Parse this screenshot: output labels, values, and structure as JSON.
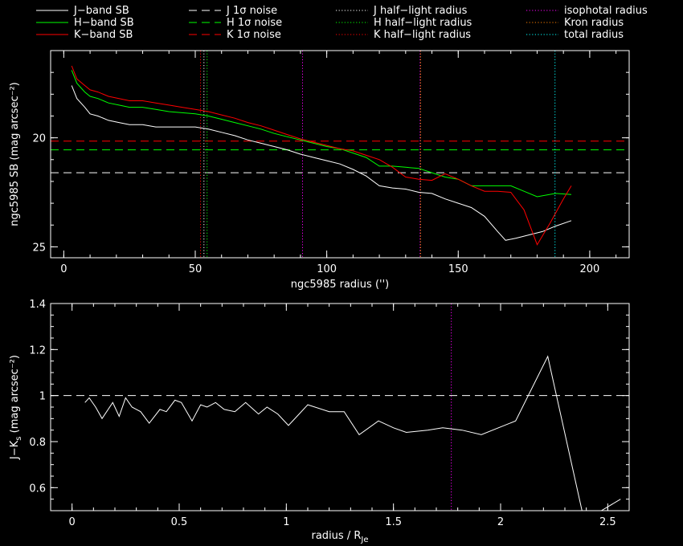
{
  "legend": [
    {
      "label": "J−band SB",
      "color": "#ffffff",
      "dash": "solid"
    },
    {
      "label": "H−band SB",
      "color": "#00ff00",
      "dash": "solid"
    },
    {
      "label": "K−band SB",
      "color": "#ff0000",
      "dash": "solid"
    },
    {
      "label": "J 1σ noise",
      "color": "#ffffff",
      "dash": "dashed"
    },
    {
      "label": "H 1σ noise",
      "color": "#00ff00",
      "dash": "dashed"
    },
    {
      "label": "K 1σ noise",
      "color": "#ff0000",
      "dash": "dashed"
    },
    {
      "label": "J half−light radius",
      "color": "#ffffff",
      "dash": "dotted"
    },
    {
      "label": "H half−light radius",
      "color": "#00ff00",
      "dash": "dotted"
    },
    {
      "label": "K half−light radius",
      "color": "#ff0000",
      "dash": "dotted"
    },
    {
      "label": "isophotal radius",
      "color": "#ff00ff",
      "dash": "dotted"
    },
    {
      "label": "Kron radius",
      "color": "#ff8000",
      "dash": "dotted"
    },
    {
      "label": "total radius",
      "color": "#00ffff",
      "dash": "dotted"
    }
  ],
  "chart_data": [
    {
      "type": "line",
      "xlabel": "ngc5985 radius ('')",
      "ylabel": "ngc5985 SB (mag arcsec⁻²)",
      "xlim": [
        -5,
        215
      ],
      "ylim": [
        25.5,
        16.0
      ],
      "y_inverted": true,
      "xticks": [
        0,
        50,
        100,
        150,
        200
      ],
      "yticks": [
        20,
        25
      ],
      "series": [
        {
          "name": "J−band SB",
          "color": "#ffffff",
          "x": [
            3,
            5,
            8,
            10,
            13,
            17,
            21,
            25,
            30,
            35,
            40,
            45,
            50,
            55,
            60,
            65,
            70,
            75,
            80,
            85,
            90,
            95,
            100,
            105,
            110,
            115,
            120,
            125,
            130,
            135,
            140,
            145,
            150,
            155,
            160,
            165,
            168,
            172,
            177,
            182,
            187,
            193
          ],
          "y": [
            17.6,
            18.2,
            18.6,
            18.9,
            19.0,
            19.2,
            19.3,
            19.4,
            19.4,
            19.5,
            19.5,
            19.5,
            19.5,
            19.6,
            19.75,
            19.9,
            20.1,
            20.25,
            20.4,
            20.55,
            20.75,
            20.9,
            21.05,
            21.2,
            21.45,
            21.75,
            22.2,
            22.3,
            22.35,
            22.5,
            22.55,
            22.8,
            23.0,
            23.2,
            23.6,
            24.3,
            24.7,
            24.6,
            24.45,
            24.3,
            24.05,
            23.8
          ]
        },
        {
          "name": "H−band SB",
          "color": "#00ff00",
          "x": [
            3,
            5,
            8,
            10,
            13,
            17,
            21,
            25,
            30,
            35,
            40,
            45,
            50,
            55,
            60,
            65,
            70,
            75,
            80,
            85,
            90,
            95,
            100,
            105,
            110,
            115,
            120,
            125,
            130,
            135,
            140,
            145,
            150,
            155,
            160,
            165,
            170,
            175,
            180,
            187,
            193
          ],
          "y": [
            16.9,
            17.5,
            17.9,
            18.1,
            18.2,
            18.4,
            18.5,
            18.6,
            18.6,
            18.7,
            18.8,
            18.85,
            18.9,
            19.0,
            19.15,
            19.3,
            19.45,
            19.6,
            19.8,
            19.95,
            20.1,
            20.25,
            20.4,
            20.5,
            20.7,
            20.9,
            21.3,
            21.3,
            21.35,
            21.4,
            21.6,
            21.8,
            21.9,
            22.2,
            22.2,
            22.2,
            22.2,
            22.45,
            22.7,
            22.55,
            22.6
          ]
        },
        {
          "name": "K−band SB",
          "color": "#ff0000",
          "x": [
            3,
            5,
            8,
            10,
            13,
            17,
            21,
            25,
            30,
            35,
            40,
            45,
            50,
            55,
            60,
            65,
            70,
            75,
            80,
            85,
            90,
            95,
            100,
            105,
            110,
            115,
            120,
            125,
            130,
            135,
            140,
            145,
            150,
            155,
            160,
            165,
            170,
            175,
            180,
            185,
            190,
            193
          ],
          "y": [
            16.7,
            17.3,
            17.6,
            17.8,
            17.9,
            18.1,
            18.2,
            18.3,
            18.3,
            18.4,
            18.5,
            18.6,
            18.7,
            18.8,
            18.95,
            19.1,
            19.3,
            19.45,
            19.65,
            19.85,
            20.05,
            20.2,
            20.35,
            20.5,
            20.6,
            20.8,
            21.0,
            21.35,
            21.8,
            21.9,
            21.95,
            21.65,
            21.9,
            22.2,
            22.45,
            22.45,
            22.5,
            23.3,
            24.9,
            23.9,
            22.8,
            22.2
          ]
        }
      ],
      "hlines": [
        {
          "y": 20.15,
          "color": "#ff0000",
          "dash": "dashed"
        },
        {
          "y": 20.55,
          "color": "#00ff00",
          "dash": "dashed"
        },
        {
          "y": 21.6,
          "color": "#ffffff",
          "dash": "dashed"
        }
      ],
      "vlines": [
        {
          "x": 53.3,
          "color": "#ffffff",
          "dash": "dotted"
        },
        {
          "x": 54.5,
          "color": "#00ff00",
          "dash": "dotted"
        },
        {
          "x": 52.0,
          "color": "#ff0000",
          "dash": "dotted"
        },
        {
          "x": 90.8,
          "color": "#ff00ff",
          "dash": "dotted"
        },
        {
          "x": 135.5,
          "color": "#ff00ff",
          "dash": "dotted"
        },
        {
          "x": 135.7,
          "color": "#ff8000",
          "dash": "dotted"
        },
        {
          "x": 186.8,
          "color": "#00ffff",
          "dash": "dotted"
        }
      ]
    },
    {
      "type": "line",
      "xlabel": "radius / R",
      "xlabel_sub": "Je",
      "ylabel": "J−K",
      "ylabel_sub": "s",
      "ylabel_rest": " (mag arcsec⁻²)",
      "xlim": [
        -0.1,
        2.6
      ],
      "ylim": [
        0.5,
        1.4
      ],
      "xticks": [
        0,
        0.5,
        1,
        1.5,
        2,
        2.5
      ],
      "ytick_labels": [
        "0.6",
        "0.8",
        "1",
        "1.2",
        "1.4"
      ],
      "yticks": [
        0.6,
        0.8,
        1.0,
        1.2,
        1.4
      ],
      "series": [
        {
          "name": "J−K",
          "color": "#ffffff",
          "x": [
            0.06,
            0.08,
            0.11,
            0.14,
            0.19,
            0.22,
            0.25,
            0.28,
            0.32,
            0.36,
            0.41,
            0.44,
            0.48,
            0.51,
            0.56,
            0.6,
            0.63,
            0.67,
            0.71,
            0.76,
            0.81,
            0.87,
            0.91,
            0.96,
            1.01,
            1.06,
            1.1,
            1.2,
            1.27,
            1.34,
            1.43,
            1.5,
            1.56,
            1.66,
            1.73,
            1.82,
            1.91,
            2.07,
            2.22,
            2.38,
            2.47,
            2.56
          ],
          "y": [
            0.97,
            0.99,
            0.95,
            0.9,
            0.97,
            0.91,
            0.99,
            0.95,
            0.93,
            0.88,
            0.94,
            0.93,
            0.98,
            0.97,
            0.89,
            0.96,
            0.95,
            0.97,
            0.94,
            0.93,
            0.97,
            0.92,
            0.95,
            0.92,
            0.87,
            0.92,
            0.96,
            0.93,
            0.93,
            0.83,
            0.89,
            0.86,
            0.84,
            0.85,
            0.86,
            0.85,
            0.83,
            0.89,
            1.17,
            0.5,
            0.5,
            0.55
          ]
        }
      ],
      "hlines": [
        {
          "y": 1.0,
          "color": "#ffffff",
          "dash": "dashed"
        }
      ],
      "vlines": [
        {
          "x": 1.77,
          "color": "#ff00ff",
          "dash": "dotted"
        }
      ]
    }
  ]
}
